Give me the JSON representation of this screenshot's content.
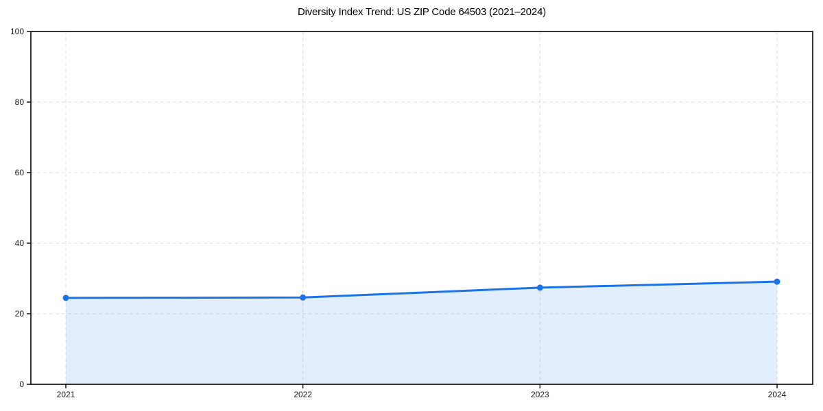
{
  "figure": {
    "background": "#ffffff"
  },
  "chart_data": {
    "type": "line",
    "title": "Diversity Index Trend: US ZIP Code 64503 (2021–2024)",
    "x": [
      "2021",
      "2022",
      "2023",
      "2024"
    ],
    "series": [
      {
        "name": "Diversity Index",
        "values": [
          24.5,
          24.6,
          27.4,
          29.1
        ],
        "line_color": "#1a73e8",
        "marker": "circle",
        "marker_color": "#1a73e8",
        "area_fill": true,
        "fill_color": "rgba(26,115,232,0.12)"
      }
    ],
    "xlabel": "",
    "ylabel": "",
    "ylim": [
      0,
      100
    ],
    "y_ticks": [
      0,
      20,
      40,
      60,
      80,
      100
    ],
    "grid": true,
    "grid_style": "dashed",
    "grid_color": "#dcdcdc",
    "spine_color": "#000000",
    "tick_color": "#000000",
    "tick_label_color": "#1a1a1a",
    "title_color": "#000000",
    "legend_position": "none"
  }
}
